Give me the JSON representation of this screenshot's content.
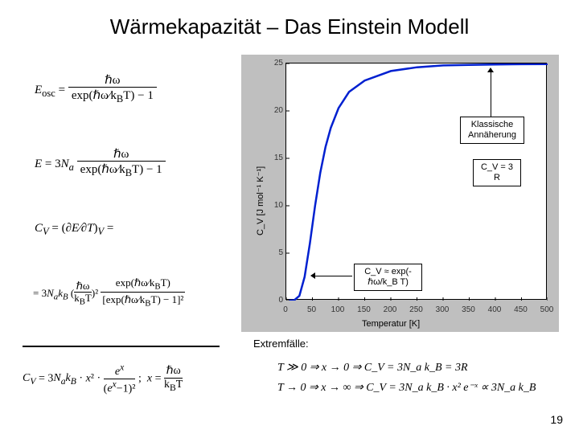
{
  "title": "Wärmekapazität – Das Einstein Modell",
  "equations": {
    "eosc_lhs": "E",
    "eosc_sub": "osc",
    "eosc_rhs": "= ℏω / (exp(ℏω/k_B T) − 1)",
    "E_total": "E = 3N_a · ℏω / (exp(ℏω/k_B T) − 1)",
    "Cv_def": "C_V = (∂E/∂T)_V =",
    "Cv_full": "= 3N_a k_B (ℏω/k_B T)² · exp(ℏω/k_B T) / [exp(ℏω/k_B T) − 1]²",
    "bottom": "C_V = 3N_a k_B · x² · eˣ/(eˣ−1)² ;  x = ℏω / k_B T"
  },
  "chart": {
    "type": "line",
    "background_color": "#bfbfbf",
    "plot_bg": "#ffffff",
    "line_color": "#0020d0",
    "line_width": 2.5,
    "xlim": [
      0,
      500
    ],
    "ylim": [
      0,
      25
    ],
    "xtick_step": 50,
    "ytick_step": 5,
    "xlabel": "Temperatur [K]",
    "ylabel": "C_V [J mol⁻¹ K⁻¹]",
    "xticks": [
      "0",
      "50",
      "100",
      "150",
      "200",
      "250",
      "300",
      "350",
      "400",
      "450",
      "500"
    ],
    "yticks": [
      "0",
      "5",
      "10",
      "15",
      "20",
      "25"
    ],
    "series": {
      "x": [
        5,
        15,
        25,
        35,
        45,
        55,
        65,
        75,
        85,
        100,
        120,
        150,
        200,
        250,
        300,
        350,
        400,
        450,
        500
      ],
      "y": [
        0.0,
        0.03,
        0.5,
        2.5,
        6.0,
        10.0,
        13.5,
        16.2,
        18.2,
        20.3,
        22.0,
        23.2,
        24.2,
        24.6,
        24.8,
        24.85,
        24.9,
        24.92,
        24.94
      ]
    },
    "plateau": 24.94
  },
  "annotations": {
    "klassisch": "Klassische\nAnnäherung",
    "cv3r": "C_V = 3 R",
    "cv_exp": "C_V ≈ exp(-ℏω/k_B T)"
  },
  "extrem_label": "Extremfälle:",
  "extrem_eqs": {
    "high_T": "T ≫ 0 ⇒ x → 0 ⇒ C_V = 3N_a k_B = 3R",
    "low_T": "T → 0 ⇒ x → ∞ ⇒ C_V = 3N_a k_B · x² e⁻ˣ ∝ 3N_a k_B"
  },
  "page_number": "19",
  "colors": {
    "text": "#000000",
    "panel_bg": "#bfbfbf",
    "curve": "#0020d0"
  },
  "typography": {
    "title_fontsize": 26,
    "body_fontsize": 15,
    "annot_fontsize": 11,
    "tick_fontsize": 10
  }
}
